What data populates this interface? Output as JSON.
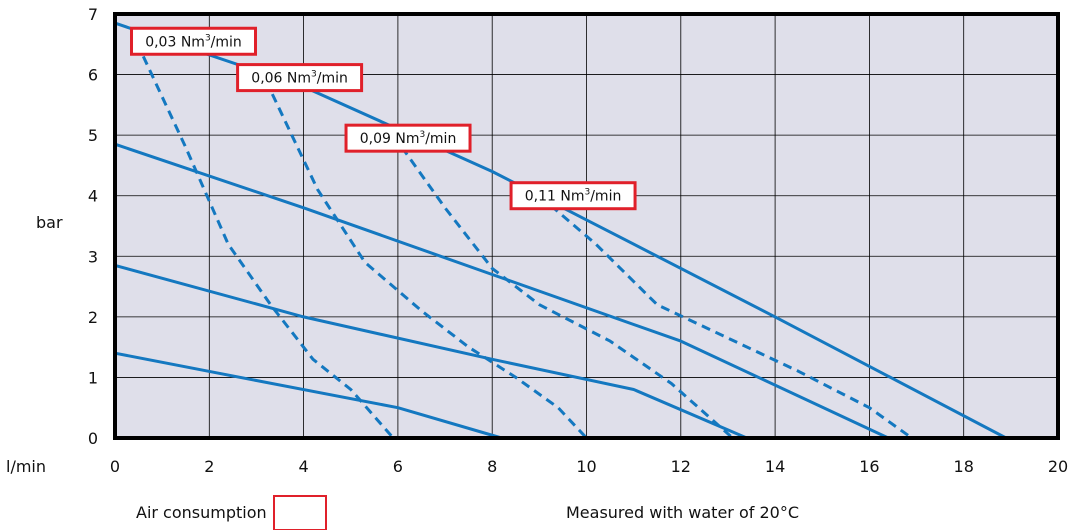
{
  "chart_data": {
    "type": "line",
    "xlabel": "l/min",
    "ylabel": "bar",
    "xlim": [
      0,
      20
    ],
    "ylim": [
      0,
      7
    ],
    "grid": true,
    "xticks": [
      "0",
      "2",
      "4",
      "6",
      "8",
      "10",
      "12",
      "14",
      "16",
      "18",
      "20"
    ],
    "yticks": [
      "0",
      "1",
      "2",
      "3",
      "4",
      "5",
      "6",
      "7"
    ],
    "pressure_curves": [
      {
        "points": [
          [
            0,
            1.4
          ],
          [
            3,
            0.95
          ],
          [
            6,
            0.5
          ],
          [
            8.2,
            0.0
          ]
        ]
      },
      {
        "points": [
          [
            0,
            2.85
          ],
          [
            4,
            2.0
          ],
          [
            8,
            1.3
          ],
          [
            11,
            0.8
          ],
          [
            13.4,
            0.0
          ]
        ]
      },
      {
        "points": [
          [
            0,
            4.85
          ],
          [
            4,
            3.8
          ],
          [
            8,
            2.7
          ],
          [
            12,
            1.6
          ],
          [
            16.4,
            0.0
          ]
        ]
      },
      {
        "points": [
          [
            0,
            6.85
          ],
          [
            4,
            5.8
          ],
          [
            8,
            4.4
          ],
          [
            10,
            3.6
          ],
          [
            14,
            2.0
          ],
          [
            18.9,
            0.0
          ]
        ]
      }
    ],
    "air_consumption_curves": [
      {
        "label": "0,03 Nm³/min",
        "points": [
          [
            0.6,
            6.3
          ],
          [
            1.5,
            4.8
          ],
          [
            2.4,
            3.2
          ],
          [
            3.3,
            2.2
          ],
          [
            4.2,
            1.3
          ],
          [
            5.0,
            0.8
          ],
          [
            5.9,
            0.0
          ]
        ]
      },
      {
        "label": "0,06 Nm³/min",
        "points": [
          [
            3.2,
            5.9
          ],
          [
            4.3,
            4.1
          ],
          [
            5.3,
            2.9
          ],
          [
            6.5,
            2.1
          ],
          [
            7.5,
            1.5
          ],
          [
            8.5,
            1.0
          ],
          [
            9.4,
            0.5
          ],
          [
            10.0,
            0.0
          ]
        ]
      },
      {
        "label": "0,09 Nm³/min",
        "points": [
          [
            5.9,
            5.0
          ],
          [
            7.0,
            3.8
          ],
          [
            8.0,
            2.8
          ],
          [
            9.0,
            2.2
          ],
          [
            10.5,
            1.6
          ],
          [
            11.8,
            0.9
          ],
          [
            13.1,
            0.0
          ]
        ]
      },
      {
        "label": "0,11 Nm³/min",
        "points": [
          [
            9.0,
            4.0
          ],
          [
            10.2,
            3.2
          ],
          [
            11.5,
            2.2
          ],
          [
            13.0,
            1.65
          ],
          [
            14.5,
            1.1
          ],
          [
            16.0,
            0.5
          ],
          [
            16.9,
            0.0
          ]
        ]
      }
    ],
    "legend": {
      "label": "Air consumption",
      "note": "Measured with water of 20°C"
    },
    "colors": {
      "plot_bg": "#dfdfea",
      "grid": "#000000",
      "line": "#1478c0",
      "annotation_border": "#e0202a",
      "frame": "#000000"
    }
  }
}
